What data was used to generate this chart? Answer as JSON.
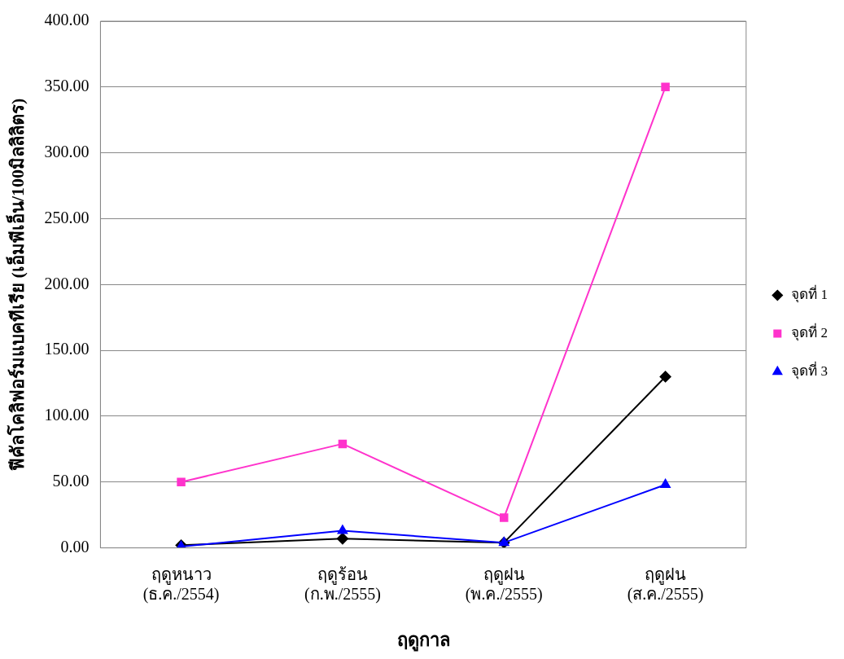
{
  "chart_data": {
    "type": "line",
    "xlabel": "ฤดูกาล",
    "ylabel": "ฟีคัลโคลิฟอร์มแบคทีเรีย (เอ็มพีเอ็น/100มิลลิลิตร)",
    "categories": [
      "ฤดูหนาว\n(ธ.ค./2554)",
      "ฤดูร้อน\n(ก.พ./2555)",
      "ฤดูฝน\n(พ.ค./2555)",
      "ฤดูฝน\n(ส.ค./2555)"
    ],
    "series": [
      {
        "name": "จุดที่ 1",
        "color": "#000000",
        "marker": "diamond",
        "values": [
          2,
          7,
          4,
          130
        ]
      },
      {
        "name": "จุดที่ 2",
        "color": "#ff33cc",
        "marker": "square",
        "values": [
          50,
          79,
          23,
          350
        ]
      },
      {
        "name": "จุดที่ 3",
        "color": "#0000ff",
        "marker": "triangle",
        "values": [
          1,
          13,
          4,
          48
        ]
      }
    ],
    "ylim": [
      0,
      400
    ],
    "yticks": [
      {
        "value": 0,
        "label": "0.00"
      },
      {
        "value": 50,
        "label": "50.00"
      },
      {
        "value": 100,
        "label": "100.00"
      },
      {
        "value": 150,
        "label": "150.00"
      },
      {
        "value": 200,
        "label": "200.00"
      },
      {
        "value": 250,
        "label": "250.00"
      },
      {
        "value": 300,
        "label": "300.00"
      },
      {
        "value": 350,
        "label": "350.00"
      },
      {
        "value": 400,
        "label": "400.00"
      }
    ],
    "grid": "y",
    "legend": "right",
    "line_style": "solid"
  }
}
